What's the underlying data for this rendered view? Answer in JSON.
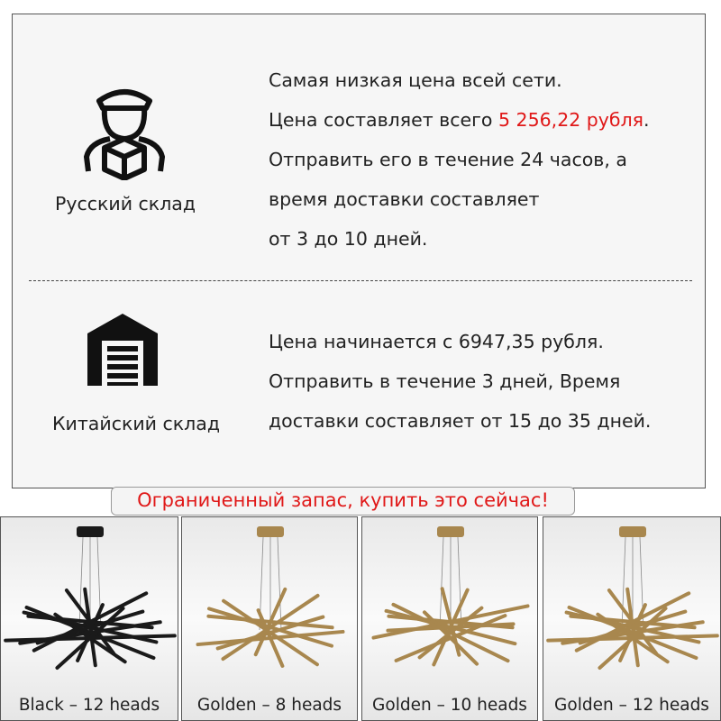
{
  "russian_warehouse": {
    "label": "Русский склад",
    "lines": [
      "Самая низкая цена всей сети.",
      {
        "before": "Цена составляет всего ",
        "price": "5 256,22 рубля",
        "after": "."
      },
      "Отправить его в течение 24 часов, а",
      "время доставки составляет",
      "от 3 до 10 дней."
    ]
  },
  "chinese_warehouse": {
    "label": "Китайский склад",
    "lines": [
      "Цена начинается с 6947,35 рубля.",
      "Отправить в течение 3 дней, Время",
      "доставки составляет от 15 до 35 дней."
    ]
  },
  "banner": "Ограниченный запас, купить это сейчас!",
  "variants": [
    "Black – 12 heads",
    "Golden – 8 heads",
    "Golden – 10 heads",
    "Golden – 12 heads"
  ]
}
